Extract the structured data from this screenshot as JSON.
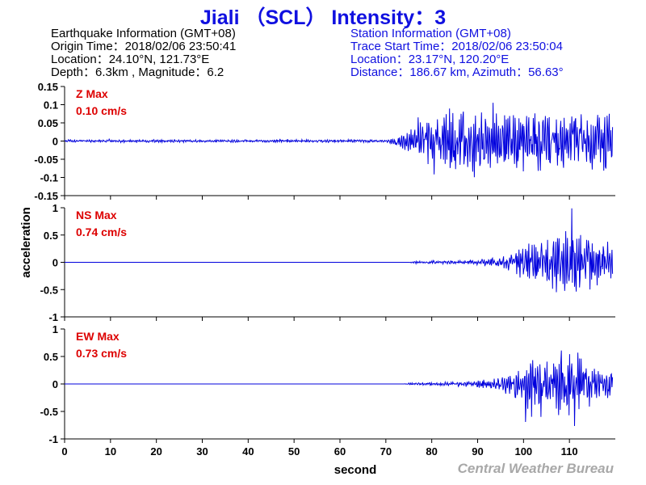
{
  "title": "Jiali （SCL） Intensity：3",
  "earthquake_info": {
    "heading": "Earthquake Information  (GMT+08)",
    "origin_time": "Origin Time：2018/02/06 23:50:41",
    "location": "Location：24.10°N, 121.73°E",
    "depth_magnitude": "Depth：6.3km , Magnitude：6.2"
  },
  "station_info": {
    "heading": "Station Information  (GMT+08)",
    "trace_start": "Trace Start Time：2018/02/06 23:50:04",
    "location": "Location：23.17°N, 120.20°E",
    "distance": "Distance：186.67 km, Azimuth：56.63°"
  },
  "credit": "Central Weather Bureau",
  "colors": {
    "trace": "#0000dd",
    "label": "#dd0000",
    "title": "#1010e0"
  },
  "chart_data": {
    "type": "line",
    "xlabel": "second",
    "ylabel": "acceleration",
    "xlim": [
      0,
      120
    ],
    "x_ticks": [
      0,
      10,
      20,
      30,
      40,
      50,
      60,
      70,
      80,
      90,
      100,
      110
    ],
    "panels": [
      {
        "name": "Z Max",
        "max_label": "0.10 cm/s",
        "ylim": [
          -0.15,
          0.15
        ],
        "y_ticks": [
          -0.15,
          -0.1,
          -0.05,
          0,
          0.05,
          0.1,
          0.15
        ],
        "y_tick_labels": [
          "-0.15",
          "-0.1",
          "-0.05",
          "0",
          "0.05",
          "0.1",
          "0.15"
        ],
        "envelope": [
          [
            0,
            0.004
          ],
          [
            70,
            0.004
          ],
          [
            72,
            0.012
          ],
          [
            75,
            0.03
          ],
          [
            77,
            0.07
          ],
          [
            80,
            0.08
          ],
          [
            85,
            0.095
          ],
          [
            90,
            0.085
          ],
          [
            100,
            0.09
          ],
          [
            110,
            0.085
          ],
          [
            119.5,
            0.09
          ]
        ]
      },
      {
        "name": "NS Max",
        "max_label": "0.74 cm/s",
        "ylim": [
          -1,
          1
        ],
        "y_ticks": [
          -1,
          -0.5,
          0,
          0.5,
          1
        ],
        "y_tick_labels": [
          "-1",
          "-0.5",
          "0",
          "0.5",
          "1"
        ],
        "envelope": [
          [
            0,
            0.0
          ],
          [
            75,
            0.0
          ],
          [
            76,
            0.02
          ],
          [
            85,
            0.03
          ],
          [
            90,
            0.05
          ],
          [
            95,
            0.1
          ],
          [
            97,
            0.2
          ],
          [
            100,
            0.35
          ],
          [
            105,
            0.45
          ],
          [
            108,
            0.6
          ],
          [
            111,
            0.7
          ],
          [
            115,
            0.5
          ],
          [
            119.5,
            0.4
          ]
        ]
      },
      {
        "name": "EW Max",
        "max_label": "0.73 cm/s",
        "ylim": [
          -1,
          1
        ],
        "y_ticks": [
          -1,
          -0.5,
          0,
          0.5,
          1
        ],
        "y_tick_labels": [
          "-1",
          "-0.5",
          "0",
          "0.5",
          "1"
        ],
        "envelope": [
          [
            0,
            0.0
          ],
          [
            74,
            0.0
          ],
          [
            75,
            0.02
          ],
          [
            85,
            0.04
          ],
          [
            90,
            0.07
          ],
          [
            95,
            0.15
          ],
          [
            98,
            0.3
          ],
          [
            100,
            0.6
          ],
          [
            103,
            0.45
          ],
          [
            105,
            0.55
          ],
          [
            108,
            0.7
          ],
          [
            111,
            0.65
          ],
          [
            115,
            0.4
          ],
          [
            119.5,
            0.25
          ]
        ]
      }
    ]
  }
}
